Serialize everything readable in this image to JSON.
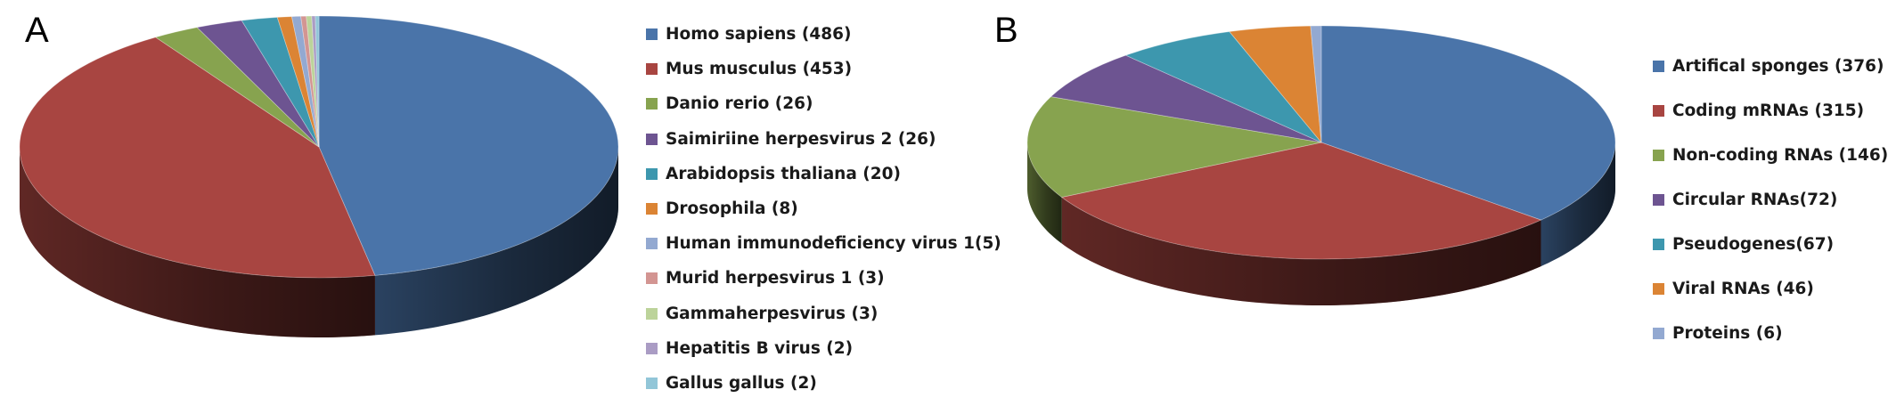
{
  "chart_data": [
    {
      "type": "pie",
      "panel": "A",
      "style": "3d",
      "legend_position": "right",
      "slices": [
        {
          "label": "Homo sapiens (486)",
          "value": 486,
          "color": "#4A74A9"
        },
        {
          "label": "Mus musculus (453)",
          "value": 453,
          "color": "#A84541"
        },
        {
          "label": "Danio rerio (26)",
          "value": 26,
          "color": "#87A34F"
        },
        {
          "label": "Saimiriine herpesvirus 2 (26)",
          "value": 26,
          "color": "#6D5491"
        },
        {
          "label": "Arabidopsis thaliana (20)",
          "value": 20,
          "color": "#3D97AE"
        },
        {
          "label": "Drosophila (8)",
          "value": 8,
          "color": "#DB8434"
        },
        {
          "label": "Human immunodeficiency virus 1(5)",
          "value": 5,
          "color": "#93A9D1"
        },
        {
          "label": "Murid herpesvirus 1 (3)",
          "value": 3,
          "color": "#D39592"
        },
        {
          "label": "Gammaherpesvirus (3)",
          "value": 3,
          "color": "#BCD39A"
        },
        {
          "label": "Hepatitis B virus (2)",
          "value": 2,
          "color": "#AA9CC4"
        },
        {
          "label": "Gallus gallus (2)",
          "value": 2,
          "color": "#92C6D8"
        }
      ]
    },
    {
      "type": "pie",
      "panel": "B",
      "style": "3d",
      "legend_position": "right",
      "slices": [
        {
          "label": "Artifical sponges (376)",
          "value": 376,
          "color": "#4A74A9"
        },
        {
          "label": "Coding mRNAs (315)",
          "value": 315,
          "color": "#A84541"
        },
        {
          "label": "Non-coding RNAs (146)",
          "value": 146,
          "color": "#87A34F"
        },
        {
          "label": "Circular RNAs(72)",
          "value": 72,
          "color": "#6D5491"
        },
        {
          "label": "Pseudogenes(67)",
          "value": 67,
          "color": "#3D97AE"
        },
        {
          "label": "Viral RNAs (46)",
          "value": 46,
          "color": "#DB8434"
        },
        {
          "label": "Proteins (6)",
          "value": 6,
          "color": "#93A9D1"
        }
      ]
    }
  ]
}
